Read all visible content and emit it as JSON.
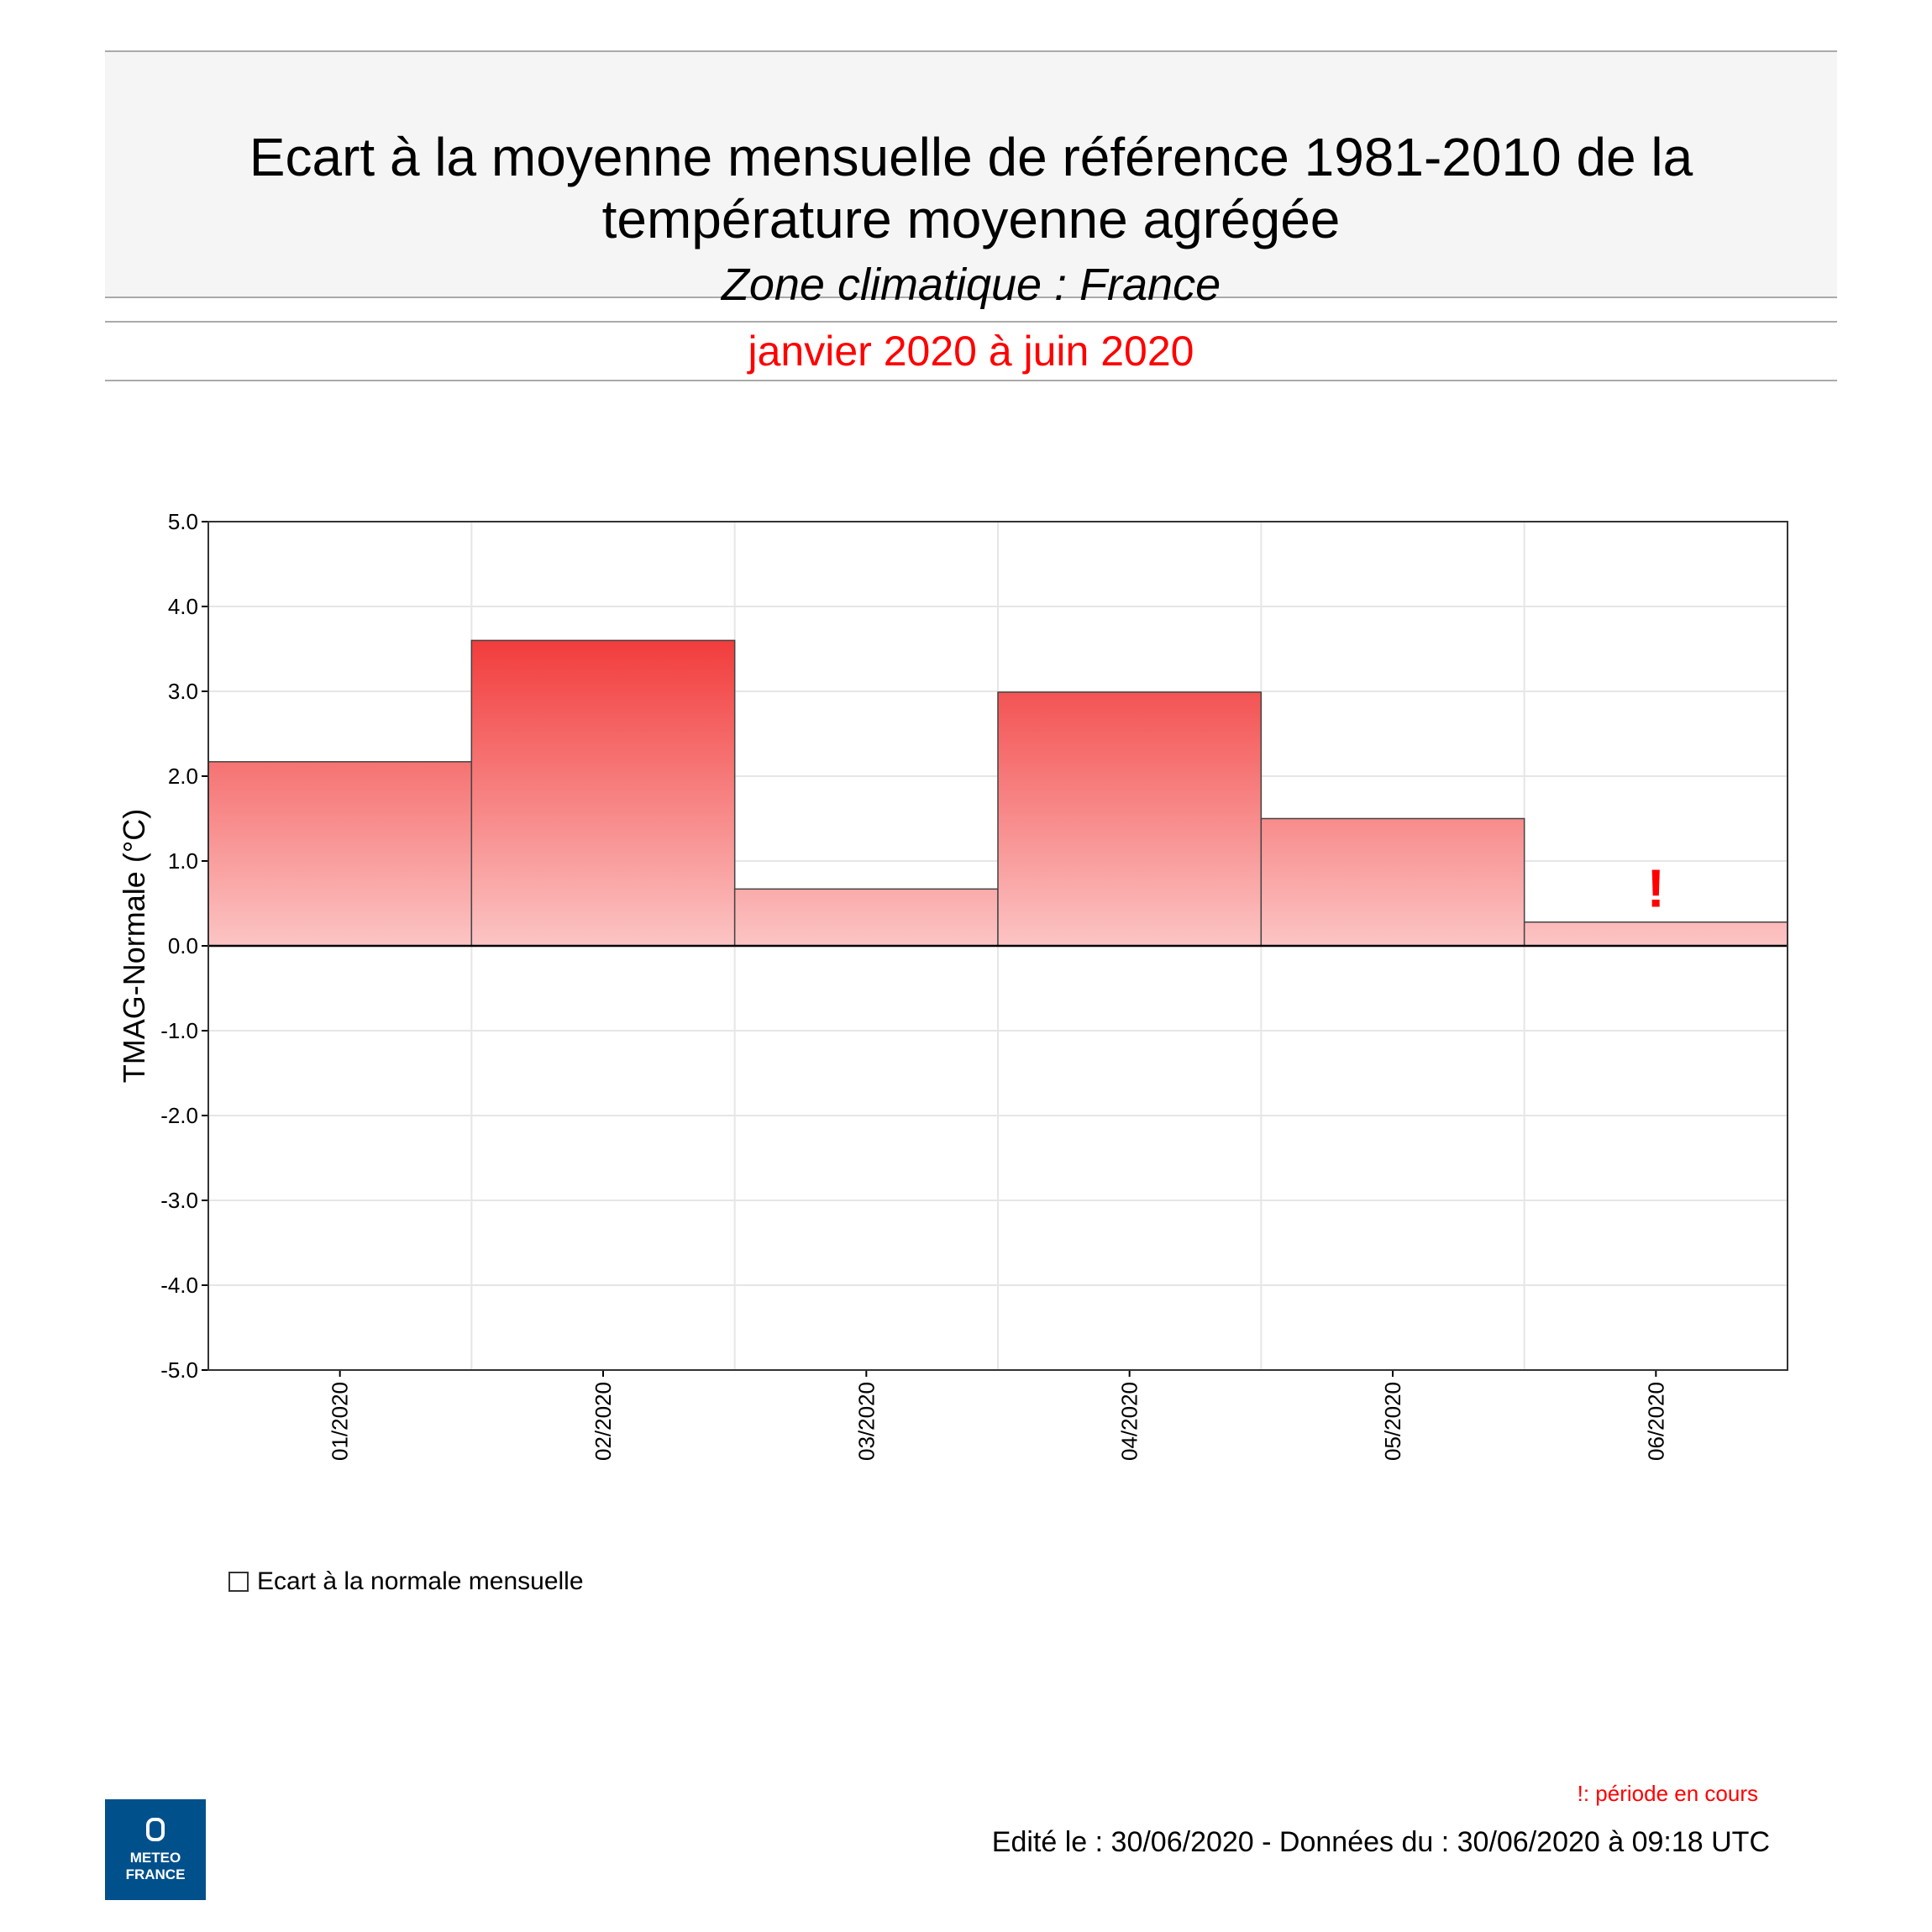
{
  "header": {
    "title_line1": "Ecart à la moyenne mensuelle de référence 1981-2010 de la",
    "title_line2": "température moyenne  agrégée",
    "subtitle": "Zone climatique : France",
    "period": "janvier 2020 à juin 2020"
  },
  "chart_data": {
    "type": "bar",
    "categories": [
      "01/2020",
      "02/2020",
      "03/2020",
      "04/2020",
      "05/2020",
      "06/2020"
    ],
    "series": [
      {
        "name": "Ecart à la normale mensuelle",
        "values": [
          2.17,
          3.6,
          0.67,
          2.99,
          1.5,
          0.28
        ]
      }
    ],
    "ylabel": "TMAG-Normale (°C)",
    "ylim": [
      -5.0,
      5.0
    ],
    "yticks": [
      "5.0",
      "4.0",
      "3.0",
      "2.0",
      "1.0",
      "0.0",
      "-1.0",
      "-2.0",
      "-3.0",
      "-4.0",
      "-5.0"
    ],
    "grid": true,
    "bar_gradient": [
      "#f23c3c",
      "#fcc4c4"
    ],
    "in_progress_marker": {
      "category": "06/2020",
      "symbol": "!",
      "color": "#ff0000"
    },
    "legend_position": "bottom-left"
  },
  "legend": {
    "label": "Ecart à la normale mensuelle"
  },
  "footer": {
    "note": "!: période en cours",
    "edited": "Edité le : 30/06/2020 - Données du : 30/06/2020 à 09:18 UTC"
  },
  "logo": {
    "line1": "METEO",
    "line2": "FRANCE",
    "color": "#00508c"
  }
}
